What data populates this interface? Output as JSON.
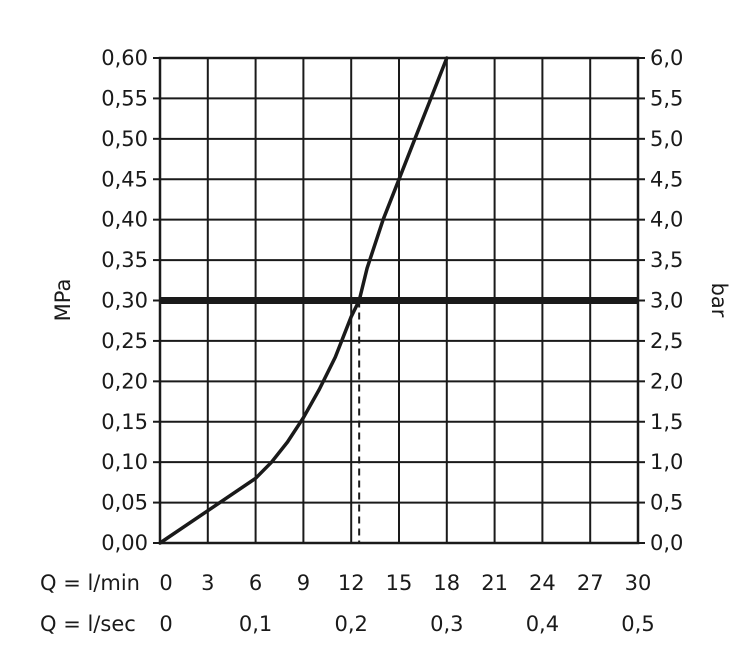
{
  "chart_data": {
    "type": "line",
    "xlabel_rows": [
      {
        "label": "Q = l/min",
        "ticks": [
          {
            "x": 0,
            "label": "0"
          },
          {
            "x": 3,
            "label": "3"
          },
          {
            "x": 6,
            "label": "6"
          },
          {
            "x": 9,
            "label": "9"
          },
          {
            "x": 12,
            "label": "12"
          },
          {
            "x": 15,
            "label": "15"
          },
          {
            "x": 18,
            "label": "18"
          },
          {
            "x": 21,
            "label": "21"
          },
          {
            "x": 24,
            "label": "24"
          },
          {
            "x": 27,
            "label": "27"
          },
          {
            "x": 30,
            "label": "30"
          }
        ]
      },
      {
        "label": "Q = l/sec",
        "ticks": [
          {
            "x": 0,
            "label": "0"
          },
          {
            "x": 6,
            "label": "0,1"
          },
          {
            "x": 12,
            "label": "0,2"
          },
          {
            "x": 18,
            "label": "0,3"
          },
          {
            "x": 24,
            "label": "0,4"
          },
          {
            "x": 30,
            "label": "0,5"
          }
        ]
      }
    ],
    "xlim": [
      0,
      30
    ],
    "ylabel_left": "MPa",
    "ylabel_right": "bar",
    "ylim": [
      0,
      0.6
    ],
    "yticks_left": [
      "0,00",
      "0,05",
      "0,10",
      "0,15",
      "0,20",
      "0,25",
      "0,30",
      "0,35",
      "0,40",
      "0,45",
      "0,50",
      "0,55",
      "0,60"
    ],
    "yticks_right": [
      "0,0",
      "0,5",
      "1,0",
      "1,5",
      "2,0",
      "2,5",
      "3,0",
      "3,5",
      "4,0",
      "4,5",
      "5,0",
      "5,5",
      "6,0"
    ],
    "grid": true,
    "series": [
      {
        "values": [
          {
            "x": 0,
            "y": 0.0
          },
          {
            "x": 3,
            "y": 0.04
          },
          {
            "x": 6,
            "y": 0.08
          },
          {
            "x": 7,
            "y": 0.1
          },
          {
            "x": 8,
            "y": 0.125
          },
          {
            "x": 9,
            "y": 0.155
          },
          {
            "x": 10,
            "y": 0.19
          },
          {
            "x": 11,
            "y": 0.23
          },
          {
            "x": 12,
            "y": 0.28
          },
          {
            "x": 12.5,
            "y": 0.3
          },
          {
            "x": 13,
            "y": 0.34
          },
          {
            "x": 14,
            "y": 0.4
          },
          {
            "x": 15,
            "y": 0.45
          },
          {
            "x": 16,
            "y": 0.5
          },
          {
            "x": 17,
            "y": 0.55
          },
          {
            "x": 18,
            "y": 0.6
          }
        ]
      }
    ],
    "reference_line": {
      "y": 0.3
    },
    "marker_dashed": {
      "x": 12.5,
      "y": 0.3
    }
  }
}
